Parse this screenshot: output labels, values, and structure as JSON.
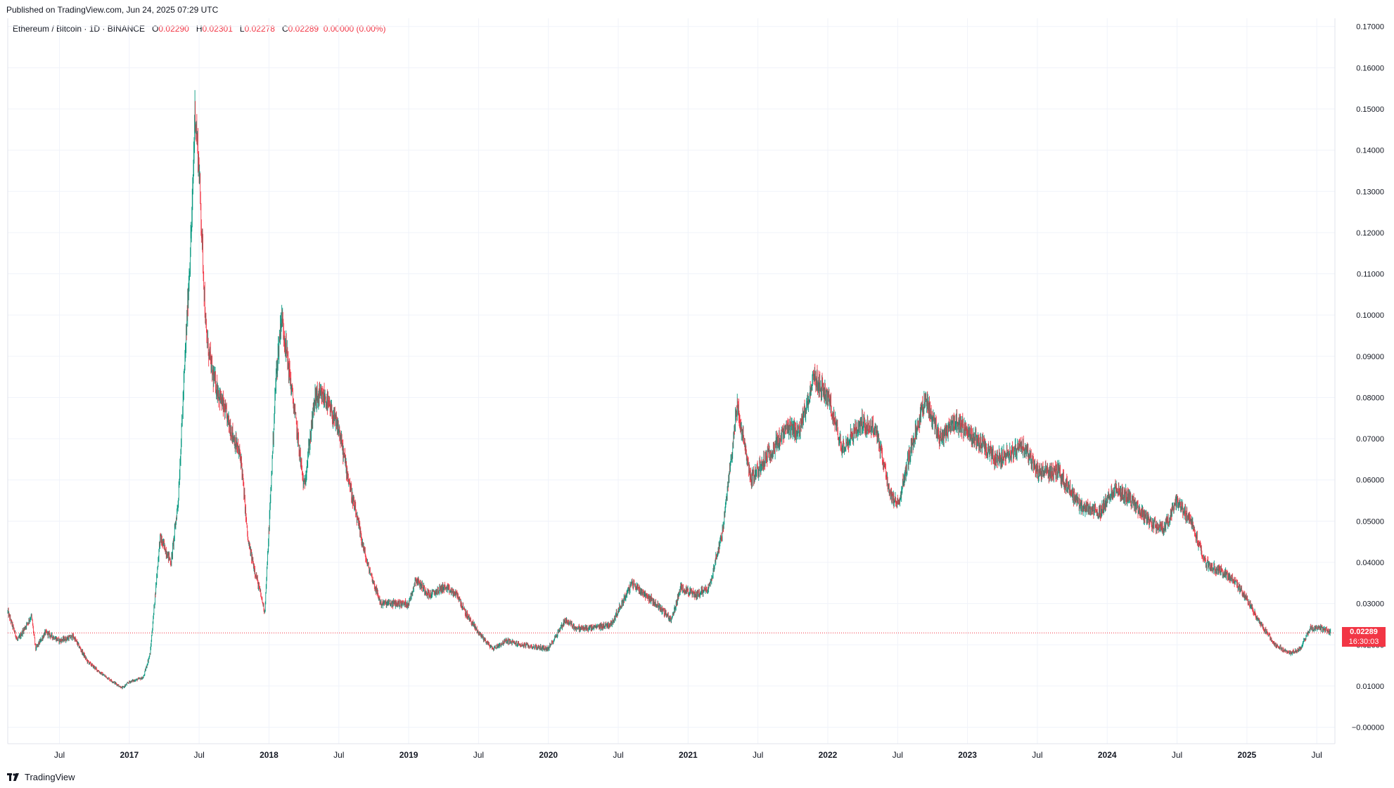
{
  "published": "Published on TradingView.com, Jun 24, 2025 07:29 UTC",
  "legend": {
    "symbol": "Ethereum / Bitcoin · 1D · BINANCE",
    "open_label": "O",
    "open": "0.02290",
    "high_label": "H",
    "high": "0.02301",
    "low_label": "L",
    "low": "0.02278",
    "close_label": "C",
    "close": "0.02289",
    "change": "0.00000 (0.00%)"
  },
  "price_tag": {
    "price": "0.02289",
    "countdown": "16:30:03"
  },
  "brand": "TradingView",
  "colors": {
    "up": "#089981",
    "down": "#f23645",
    "grid": "#f0f3fa",
    "text": "#131722"
  },
  "chart_data": {
    "type": "candlestick",
    "symbol": "ETHBTC",
    "ylim": [
      -0.004,
      0.172
    ],
    "y_ticks": [
      "0.17000",
      "0.16000",
      "0.15000",
      "0.14000",
      "0.13000",
      "0.12000",
      "0.11000",
      "0.10000",
      "0.09000",
      "0.08000",
      "0.07000",
      "0.06000",
      "0.05000",
      "0.04000",
      "0.03000",
      "0.02000",
      "0.01000",
      "−0.00000"
    ],
    "y_tick_values": [
      0.17,
      0.16,
      0.15,
      0.14,
      0.13,
      0.12,
      0.11,
      0.1,
      0.09,
      0.08,
      0.07,
      0.06,
      0.05,
      0.04,
      0.03,
      0.02,
      0.01,
      0.0
    ],
    "x_range": [
      2016.13,
      2025.63
    ],
    "x_ticks": [
      {
        "label": "Jul",
        "t": 2016.5
      },
      {
        "label": "2017",
        "t": 2017.0
      },
      {
        "label": "Jul",
        "t": 2017.5
      },
      {
        "label": "2018",
        "t": 2018.0
      },
      {
        "label": "Jul",
        "t": 2018.5
      },
      {
        "label": "2019",
        "t": 2019.0
      },
      {
        "label": "Jul",
        "t": 2019.5
      },
      {
        "label": "2020",
        "t": 2020.0
      },
      {
        "label": "Jul",
        "t": 2020.5
      },
      {
        "label": "2021",
        "t": 2021.0
      },
      {
        "label": "Jul",
        "t": 2021.5
      },
      {
        "label": "2022",
        "t": 2022.0
      },
      {
        "label": "Jul",
        "t": 2022.5
      },
      {
        "label": "2023",
        "t": 2023.0
      },
      {
        "label": "Jul",
        "t": 2023.5
      },
      {
        "label": "2024",
        "t": 2024.0
      },
      {
        "label": "Jul",
        "t": 2024.5
      },
      {
        "label": "2025",
        "t": 2025.0
      },
      {
        "label": "Jul",
        "t": 2025.5
      }
    ],
    "last_price": 0.02289,
    "close_path": [
      [
        2016.13,
        0.028
      ],
      [
        2016.2,
        0.021
      ],
      [
        2016.3,
        0.027
      ],
      [
        2016.33,
        0.019
      ],
      [
        2016.4,
        0.023
      ],
      [
        2016.5,
        0.021
      ],
      [
        2016.6,
        0.022
      ],
      [
        2016.7,
        0.016
      ],
      [
        2016.8,
        0.013
      ],
      [
        2016.95,
        0.0095
      ],
      [
        2017.0,
        0.011
      ],
      [
        2017.1,
        0.012
      ],
      [
        2017.15,
        0.018
      ],
      [
        2017.22,
        0.046
      ],
      [
        2017.3,
        0.04
      ],
      [
        2017.35,
        0.055
      ],
      [
        2017.4,
        0.09
      ],
      [
        2017.45,
        0.125
      ],
      [
        2017.47,
        0.15
      ],
      [
        2017.5,
        0.135
      ],
      [
        2017.55,
        0.095
      ],
      [
        2017.6,
        0.085
      ],
      [
        2017.7,
        0.075
      ],
      [
        2017.8,
        0.065
      ],
      [
        2017.85,
        0.045
      ],
      [
        2017.92,
        0.035
      ],
      [
        2017.97,
        0.028
      ],
      [
        2018.0,
        0.048
      ],
      [
        2018.05,
        0.085
      ],
      [
        2018.09,
        0.1
      ],
      [
        2018.13,
        0.09
      ],
      [
        2018.2,
        0.072
      ],
      [
        2018.25,
        0.058
      ],
      [
        2018.33,
        0.08
      ],
      [
        2018.4,
        0.08
      ],
      [
        2018.5,
        0.072
      ],
      [
        2018.6,
        0.055
      ],
      [
        2018.7,
        0.04
      ],
      [
        2018.8,
        0.03
      ],
      [
        2018.9,
        0.03
      ],
      [
        2019.0,
        0.03
      ],
      [
        2019.05,
        0.036
      ],
      [
        2019.15,
        0.032
      ],
      [
        2019.25,
        0.034
      ],
      [
        2019.35,
        0.032
      ],
      [
        2019.4,
        0.028
      ],
      [
        2019.5,
        0.023
      ],
      [
        2019.6,
        0.019
      ],
      [
        2019.7,
        0.021
      ],
      [
        2019.8,
        0.02
      ],
      [
        2020.0,
        0.019
      ],
      [
        2020.12,
        0.026
      ],
      [
        2020.2,
        0.024
      ],
      [
        2020.3,
        0.024
      ],
      [
        2020.45,
        0.025
      ],
      [
        2020.6,
        0.035
      ],
      [
        2020.7,
        0.032
      ],
      [
        2020.8,
        0.029
      ],
      [
        2020.88,
        0.026
      ],
      [
        2020.95,
        0.034
      ],
      [
        2021.05,
        0.032
      ],
      [
        2021.15,
        0.034
      ],
      [
        2021.25,
        0.048
      ],
      [
        2021.35,
        0.078
      ],
      [
        2021.45,
        0.06
      ],
      [
        2021.55,
        0.065
      ],
      [
        2021.7,
        0.072
      ],
      [
        2021.8,
        0.072
      ],
      [
        2021.9,
        0.085
      ],
      [
        2022.0,
        0.08
      ],
      [
        2022.1,
        0.068
      ],
      [
        2022.25,
        0.074
      ],
      [
        2022.35,
        0.072
      ],
      [
        2022.45,
        0.056
      ],
      [
        2022.5,
        0.054
      ],
      [
        2022.6,
        0.068
      ],
      [
        2022.7,
        0.08
      ],
      [
        2022.8,
        0.07
      ],
      [
        2022.9,
        0.074
      ],
      [
        2023.0,
        0.072
      ],
      [
        2023.2,
        0.065
      ],
      [
        2023.4,
        0.068
      ],
      [
        2023.5,
        0.062
      ],
      [
        2023.65,
        0.062
      ],
      [
        2023.8,
        0.054
      ],
      [
        2023.95,
        0.052
      ],
      [
        2024.05,
        0.058
      ],
      [
        2024.15,
        0.056
      ],
      [
        2024.3,
        0.05
      ],
      [
        2024.4,
        0.048
      ],
      [
        2024.5,
        0.055
      ],
      [
        2024.6,
        0.05
      ],
      [
        2024.7,
        0.04
      ],
      [
        2024.8,
        0.038
      ],
      [
        2024.9,
        0.036
      ],
      [
        2025.0,
        0.031
      ],
      [
        2025.1,
        0.025
      ],
      [
        2025.2,
        0.02
      ],
      [
        2025.3,
        0.018
      ],
      [
        2025.38,
        0.019
      ],
      [
        2025.45,
        0.024
      ],
      [
        2025.55,
        0.024
      ],
      [
        2025.6,
        0.0229
      ]
    ]
  }
}
